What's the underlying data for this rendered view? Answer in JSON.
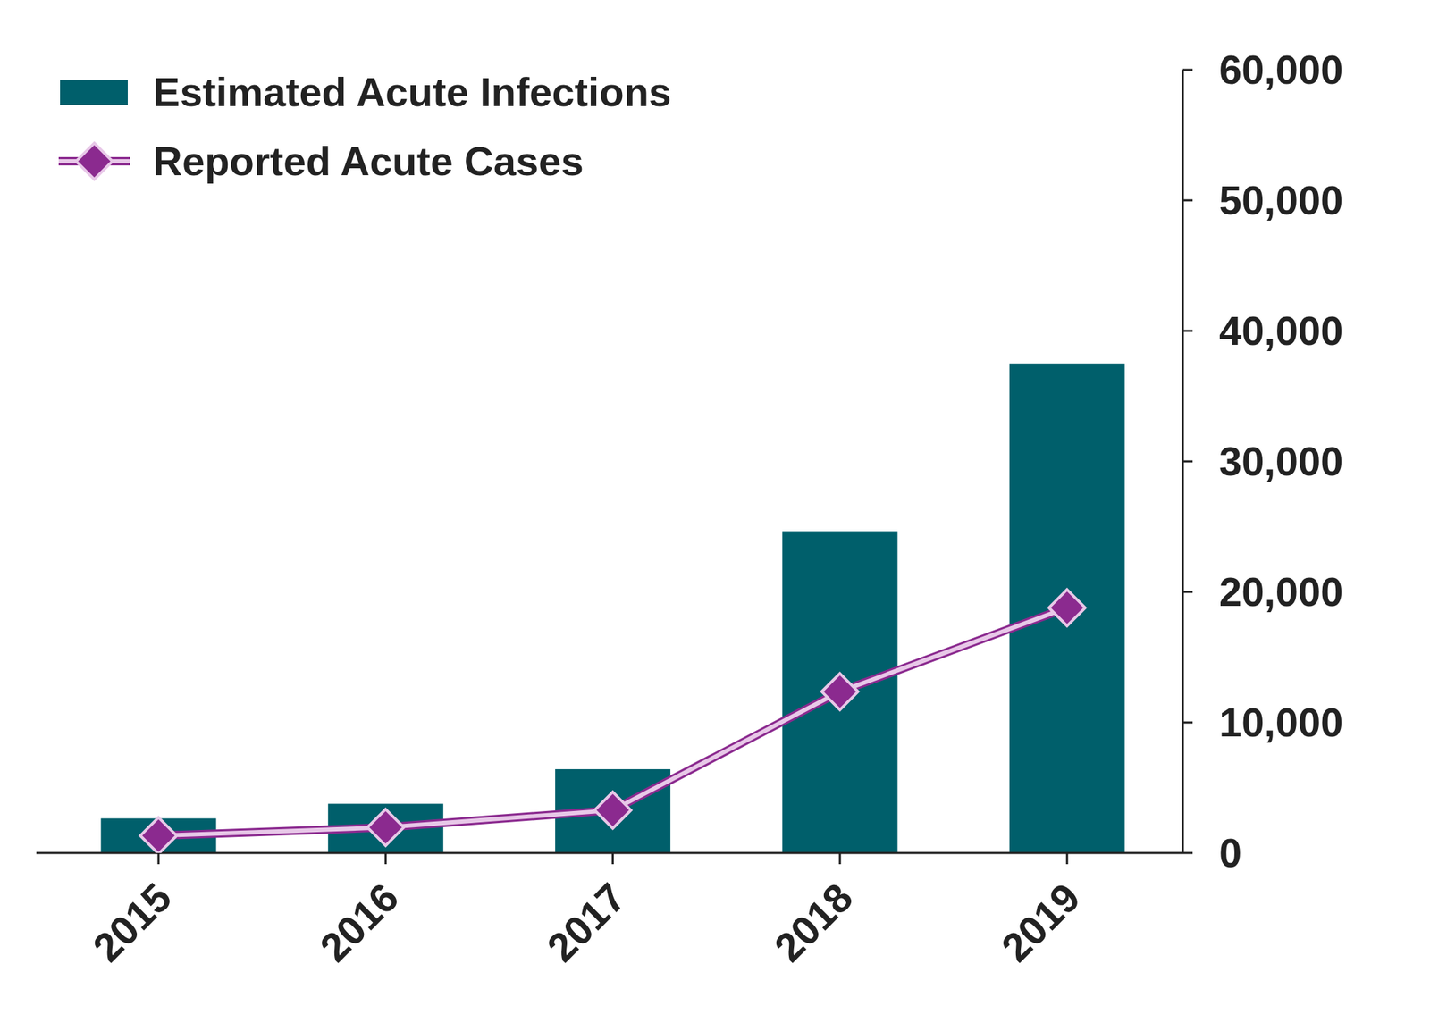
{
  "chart_data": {
    "type": "bar",
    "categories": [
      "2015",
      "2016",
      "2017",
      "2018",
      "2019"
    ],
    "series": [
      {
        "name": "Estimated Acute Infections",
        "type": "bar",
        "color": "#005f6b",
        "values": [
          2650,
          3770,
          6420,
          24650,
          37500
        ]
      },
      {
        "name": "Reported Acute Cases",
        "type": "line",
        "color": "#8b2a8f",
        "marker": "diamond",
        "line_style": "solid",
        "values": [
          1330,
          1960,
          3280,
          12360,
          18790
        ]
      }
    ],
    "ylim": [
      0,
      60000
    ],
    "yticks": [
      0,
      {
        "value": 10000,
        "label": "10,000"
      },
      {
        "value": 20000,
        "label": "20,000"
      },
      {
        "value": 30000,
        "label": "30,000"
      },
      {
        "value": 40000,
        "label": "40,000"
      },
      {
        "value": 50000,
        "label": "50,000"
      },
      {
        "value": 60000,
        "label": "60,000"
      }
    ],
    "grid": false,
    "legend": "top-left"
  }
}
